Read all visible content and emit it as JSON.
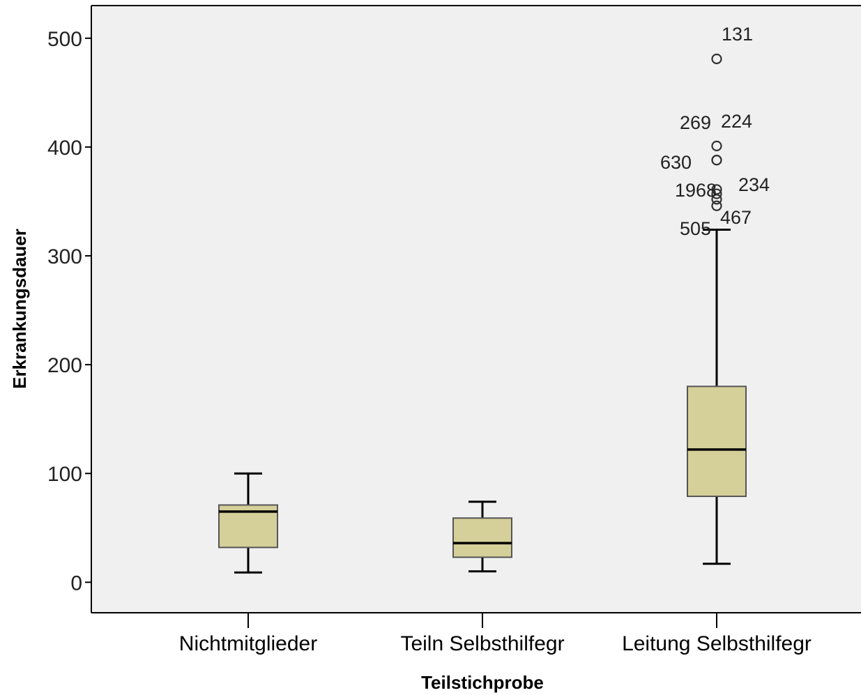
{
  "chart_data": {
    "type": "boxplot",
    "title": "",
    "xlabel": "Teilstichprobe",
    "ylabel": "Erkrankungsdauer",
    "ylim": [
      -28,
      530
    ],
    "yticks": [
      0,
      100,
      200,
      300,
      400,
      500
    ],
    "grid": false,
    "colors": {
      "plot_background": "#f0f0f0",
      "box_fill": "#d5cf9a",
      "box_stroke": "#555555",
      "median": "#000000",
      "whisker": "#000000",
      "text": "#222222"
    },
    "categories": [
      "Nichtmitglieder",
      "Teiln Selbsthilfegr",
      "Leitung Selbsthilfegr"
    ],
    "boxes": [
      {
        "category": "Nichtmitglieder",
        "whisker_low": 9,
        "q1": 32,
        "median": 65,
        "q3": 71,
        "whisker_high": 100,
        "outliers": []
      },
      {
        "category": "Teiln Selbsthilfegr",
        "whisker_low": 10,
        "q1": 23,
        "median": 36,
        "q3": 59,
        "whisker_high": 74,
        "outliers": []
      },
      {
        "category": "Leitung Selbsthilfegr",
        "whisker_low": 17,
        "q1": 79,
        "median": 122,
        "q3": 180,
        "whisker_high": 324,
        "outliers": [
          {
            "value": 481,
            "label": "131"
          },
          {
            "value": 401,
            "label": "224"
          },
          {
            "value": 388,
            "label": "269"
          },
          {
            "value": 388,
            "label": "630"
          },
          {
            "value": 361,
            "label": "234"
          },
          {
            "value": 357,
            "label": "196"
          },
          {
            "value": 352,
            "label": "8"
          },
          {
            "value": 346,
            "label": "467"
          },
          {
            "value": 324,
            "label": "505"
          }
        ]
      }
    ]
  }
}
